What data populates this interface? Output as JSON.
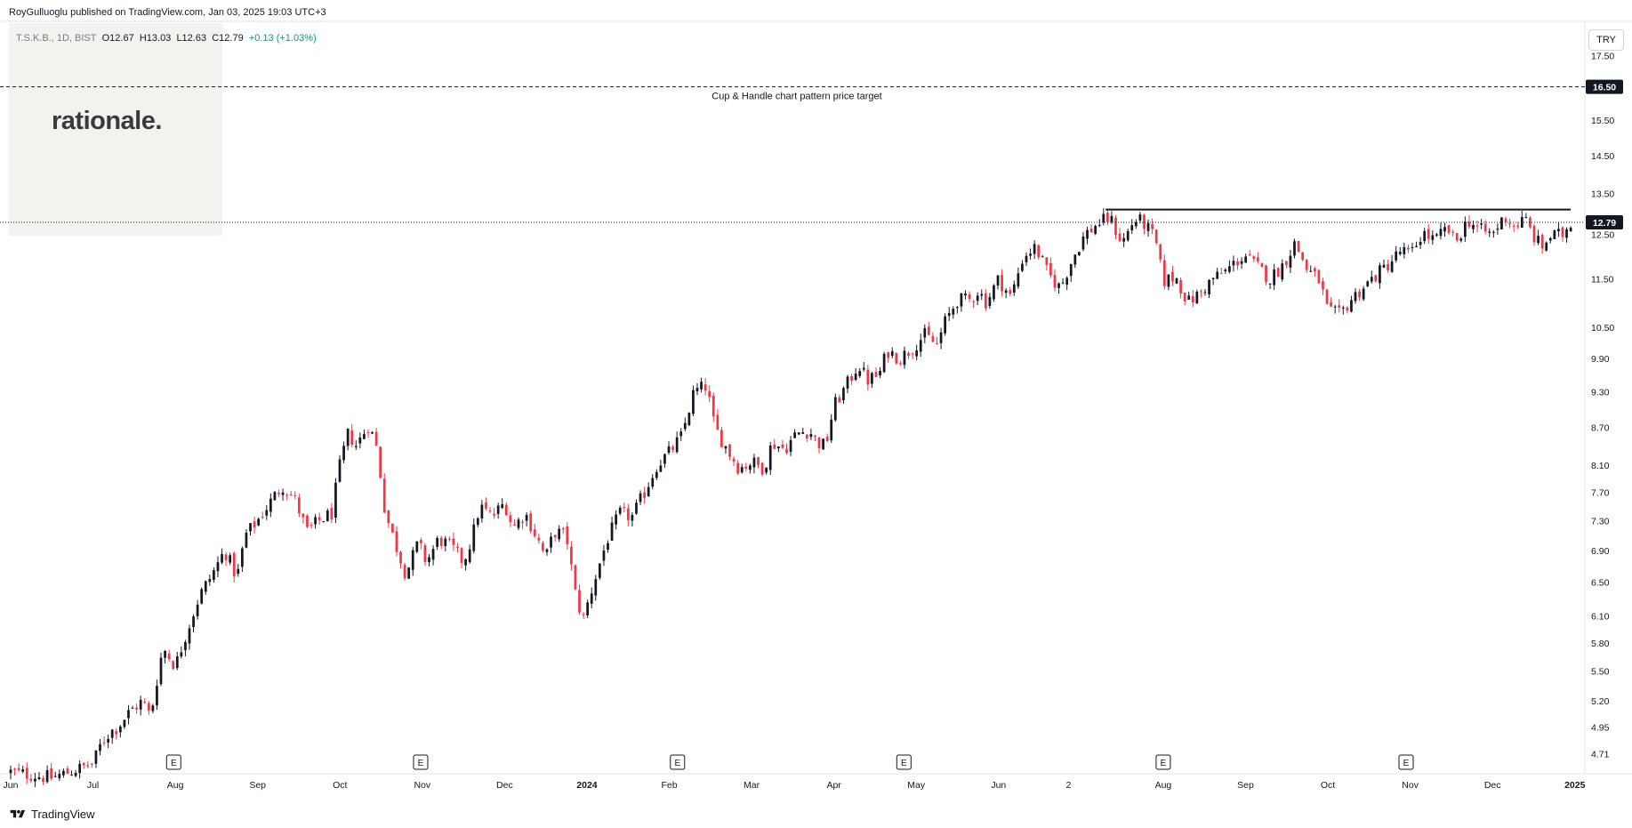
{
  "header": {
    "published_by": "RoyGulluoglu published on TradingView.com, Jan 03, 2025 19:03 UTC+3"
  },
  "legend": {
    "symbol": "T.S.K.B., 1D, BIST",
    "open": "O12.67",
    "high": "H13.03",
    "low": "L12.63",
    "close": "C12.79",
    "change": "+0.13 (+1.03%)"
  },
  "logo": {
    "text": "rationale."
  },
  "currency": "TRY",
  "footer": {
    "brand": "TradingView"
  },
  "annotation": {
    "text": "Cup & Handle chart pattern price target"
  },
  "chart_data": {
    "type": "candlestick",
    "symbol": "T.S.K.B.",
    "interval": "1D",
    "exchange": "BIST",
    "currency": "TRY",
    "y_scale": "log",
    "y_ticks": [
      "17.50",
      "15.50",
      "14.50",
      "13.50",
      "12.50",
      "11.50",
      "10.50",
      "9.90",
      "9.30",
      "8.70",
      "8.10",
      "7.70",
      "7.30",
      "6.90",
      "6.50",
      "6.10",
      "5.80",
      "5.50",
      "5.20",
      "4.95",
      "4.71"
    ],
    "ylim": [
      4.55,
      18.6
    ],
    "x_ticks": [
      {
        "label": "Jun",
        "t": 0.0
      },
      {
        "label": "Jul",
        "t": 1.0
      },
      {
        "label": "Aug",
        "t": 2.0
      },
      {
        "label": "Sep",
        "t": 3.0
      },
      {
        "label": "Oct",
        "t": 4.0
      },
      {
        "label": "Nov",
        "t": 5.0
      },
      {
        "label": "Dec",
        "t": 6.0
      },
      {
        "label": "2024",
        "t": 7.0,
        "bold": true
      },
      {
        "label": "Feb",
        "t": 8.0
      },
      {
        "label": "Mar",
        "t": 9.0
      },
      {
        "label": "Apr",
        "t": 10.0
      },
      {
        "label": "May",
        "t": 11.0
      },
      {
        "label": "Jun",
        "t": 12.0
      },
      {
        "label": "2",
        "t": 12.85
      },
      {
        "label": "Aug",
        "t": 14.0
      },
      {
        "label": "Sep",
        "t": 15.0
      },
      {
        "label": "Oct",
        "t": 16.0
      },
      {
        "label": "Nov",
        "t": 17.0
      },
      {
        "label": "Dec",
        "t": 18.0
      },
      {
        "label": "2025",
        "t": 19.0,
        "bold": true
      }
    ],
    "xlim": [
      0.0,
      19.1
    ],
    "earnings_markers": {
      "label": "E",
      "t": [
        1.98,
        4.98,
        8.1,
        10.85,
        14.0,
        16.95
      ]
    },
    "price_label": {
      "value": "12.79",
      "color": "#089981"
    },
    "target_label": {
      "value": "16.50"
    },
    "target_line": 16.5,
    "resistance_line": {
      "value": 13.1,
      "t_start": 13.3,
      "t_end": 18.95
    },
    "anchors": [
      [
        0.0,
        4.55
      ],
      [
        0.5,
        4.5
      ],
      [
        1.0,
        4.62
      ],
      [
        1.1,
        4.8
      ],
      [
        1.2,
        4.9
      ],
      [
        1.3,
        4.95
      ],
      [
        1.45,
        5.1
      ],
      [
        1.6,
        5.2
      ],
      [
        1.7,
        5.05
      ],
      [
        1.85,
        5.75
      ],
      [
        2.0,
        5.55
      ],
      [
        2.15,
        5.95
      ],
      [
        2.3,
        6.35
      ],
      [
        2.45,
        6.6
      ],
      [
        2.6,
        6.9
      ],
      [
        2.75,
        6.55
      ],
      [
        2.85,
        7.1
      ],
      [
        3.0,
        7.3
      ],
      [
        3.15,
        7.55
      ],
      [
        3.3,
        7.8
      ],
      [
        3.45,
        7.6
      ],
      [
        3.6,
        7.15
      ],
      [
        3.75,
        7.3
      ],
      [
        3.9,
        7.4
      ],
      [
        4.0,
        8.1
      ],
      [
        4.1,
        8.6
      ],
      [
        4.2,
        8.4
      ],
      [
        4.35,
        8.75
      ],
      [
        4.45,
        8.35
      ],
      [
        4.55,
        7.4
      ],
      [
        4.7,
        6.9
      ],
      [
        4.8,
        6.6
      ],
      [
        4.95,
        7.0
      ],
      [
        5.05,
        6.75
      ],
      [
        5.2,
        7.05
      ],
      [
        5.35,
        6.95
      ],
      [
        5.5,
        6.75
      ],
      [
        5.6,
        7.05
      ],
      [
        5.7,
        7.5
      ],
      [
        5.85,
        7.35
      ],
      [
        6.0,
        7.55
      ],
      [
        6.1,
        7.2
      ],
      [
        6.25,
        7.4
      ],
      [
        6.4,
        7.05
      ],
      [
        6.5,
        6.8
      ],
      [
        6.6,
        7.15
      ],
      [
        6.75,
        7.1
      ],
      [
        6.85,
        6.4
      ],
      [
        6.95,
        6.05
      ],
      [
        7.1,
        6.55
      ],
      [
        7.25,
        7.05
      ],
      [
        7.4,
        7.4
      ],
      [
        7.55,
        7.35
      ],
      [
        7.7,
        7.7
      ],
      [
        7.85,
        8.1
      ],
      [
        8.0,
        8.3
      ],
      [
        8.15,
        8.55
      ],
      [
        8.3,
        9.3
      ],
      [
        8.45,
        9.4
      ],
      [
        8.55,
        8.7
      ],
      [
        8.7,
        8.35
      ],
      [
        8.85,
        8.05
      ],
      [
        9.0,
        8.15
      ],
      [
        9.15,
        8.05
      ],
      [
        9.25,
        8.45
      ],
      [
        9.4,
        8.35
      ],
      [
        9.55,
        8.6
      ],
      [
        9.7,
        8.65
      ],
      [
        9.8,
        8.45
      ],
      [
        9.9,
        8.4
      ],
      [
        10.0,
        9.05
      ],
      [
        10.15,
        9.4
      ],
      [
        10.3,
        9.8
      ],
      [
        10.4,
        9.5
      ],
      [
        10.55,
        9.6
      ],
      [
        10.65,
        10.05
      ],
      [
        10.8,
        9.9
      ],
      [
        10.95,
        10.1
      ],
      [
        11.1,
        10.35
      ],
      [
        11.25,
        10.15
      ],
      [
        11.35,
        10.6
      ],
      [
        11.5,
        11.05
      ],
      [
        11.65,
        11.05
      ],
      [
        11.75,
        11.25
      ],
      [
        11.85,
        11.0
      ],
      [
        12.0,
        11.5
      ],
      [
        12.15,
        11.1
      ],
      [
        12.3,
        12.0
      ],
      [
        12.45,
        12.2
      ],
      [
        12.6,
        11.6
      ],
      [
        12.75,
        11.3
      ],
      [
        12.9,
        11.95
      ],
      [
        13.05,
        12.5
      ],
      [
        13.2,
        12.75
      ],
      [
        13.35,
        12.9
      ],
      [
        13.5,
        12.3
      ],
      [
        13.65,
        12.85
      ],
      [
        13.75,
        12.8
      ],
      [
        13.9,
        12.4
      ],
      [
        14.0,
        11.45
      ],
      [
        14.15,
        11.55
      ],
      [
        14.3,
        11.0
      ],
      [
        14.45,
        11.2
      ],
      [
        14.6,
        11.5
      ],
      [
        14.75,
        11.65
      ],
      [
        14.9,
        11.9
      ],
      [
        15.0,
        12.0
      ],
      [
        15.15,
        11.75
      ],
      [
        15.3,
        11.5
      ],
      [
        15.45,
        11.8
      ],
      [
        15.6,
        12.3
      ],
      [
        15.75,
        11.7
      ],
      [
        15.9,
        11.45
      ],
      [
        16.0,
        10.8
      ],
      [
        16.15,
        10.75
      ],
      [
        16.3,
        11.1
      ],
      [
        16.45,
        11.35
      ],
      [
        16.6,
        11.6
      ],
      [
        16.75,
        11.85
      ],
      [
        16.9,
        12.15
      ],
      [
        17.0,
        12.0
      ],
      [
        17.15,
        12.55
      ],
      [
        17.3,
        12.35
      ],
      [
        17.45,
        12.65
      ],
      [
        17.55,
        12.3
      ],
      [
        17.7,
        12.85
      ],
      [
        17.85,
        12.6
      ],
      [
        18.0,
        12.5
      ],
      [
        18.15,
        12.95
      ],
      [
        18.25,
        12.7
      ],
      [
        18.4,
        12.85
      ],
      [
        18.5,
        12.45
      ],
      [
        18.6,
        12.2
      ],
      [
        18.7,
        12.45
      ],
      [
        18.85,
        12.5
      ],
      [
        18.95,
        12.79
      ]
    ]
  }
}
